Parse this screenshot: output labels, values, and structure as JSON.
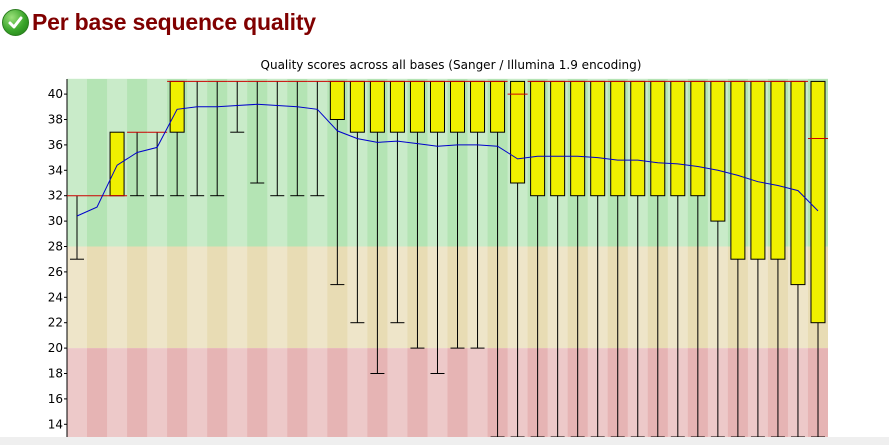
{
  "page": {
    "title": "Per base sequence quality",
    "status_icon": "check-circle-icon",
    "status": "pass"
  },
  "colors": {
    "title": "#800000",
    "good_zone": "#b4e4b4",
    "warn_zone": "#e8dcb4",
    "bad_zone": "#e6b4b4",
    "box_fill": "#f0f000",
    "median": "#cc0000",
    "mean_line": "#0000cc"
  },
  "chart_data": {
    "type": "box",
    "title": "Quality scores across all bases (Sanger / Illumina 1.9 encoding)",
    "xlabel": "",
    "ylabel": "",
    "ylim": [
      13,
      41.2
    ],
    "y_ticks": [
      14,
      16,
      18,
      20,
      22,
      24,
      26,
      28,
      30,
      32,
      34,
      36,
      38,
      40
    ],
    "zones": [
      {
        "name": "good",
        "from": 28,
        "to": 41.2
      },
      {
        "name": "warning",
        "from": 20,
        "to": 28
      },
      {
        "name": "bad",
        "from": 13,
        "to": 20
      }
    ],
    "positions": 38,
    "boxes": [
      {
        "lower_q": 32,
        "upper_q": 32,
        "median": 32,
        "whisker_low": 27,
        "whisker_high": 32,
        "mean": 30.4
      },
      {
        "lower_q": 32,
        "upper_q": 32,
        "median": 32,
        "whisker_low": 32,
        "whisker_high": 32,
        "mean": 31.1
      },
      {
        "lower_q": 32,
        "upper_q": 37,
        "median": 32,
        "whisker_low": 32,
        "whisker_high": 37,
        "mean": 34.4
      },
      {
        "lower_q": 37,
        "upper_q": 37,
        "median": 37,
        "whisker_low": 32,
        "whisker_high": 37,
        "mean": 35.4
      },
      {
        "lower_q": 37,
        "upper_q": 37,
        "median": 37,
        "whisker_low": 32,
        "whisker_high": 37,
        "mean": 35.8
      },
      {
        "lower_q": 37,
        "upper_q": 41,
        "median": 41,
        "whisker_low": 32,
        "whisker_high": 41,
        "mean": 38.8
      },
      {
        "lower_q": 41,
        "upper_q": 41,
        "median": 41,
        "whisker_low": 32,
        "whisker_high": 41,
        "mean": 39.0
      },
      {
        "lower_q": 41,
        "upper_q": 41,
        "median": 41,
        "whisker_low": 32,
        "whisker_high": 41,
        "mean": 39.0
      },
      {
        "lower_q": 41,
        "upper_q": 41,
        "median": 41,
        "whisker_low": 37,
        "whisker_high": 41,
        "mean": 39.1
      },
      {
        "lower_q": 41,
        "upper_q": 41,
        "median": 41,
        "whisker_low": 33,
        "whisker_high": 41,
        "mean": 39.2
      },
      {
        "lower_q": 41,
        "upper_q": 41,
        "median": 41,
        "whisker_low": 32,
        "whisker_high": 41,
        "mean": 39.1
      },
      {
        "lower_q": 41,
        "upper_q": 41,
        "median": 41,
        "whisker_low": 32,
        "whisker_high": 41,
        "mean": 39.0
      },
      {
        "lower_q": 41,
        "upper_q": 41,
        "median": 41,
        "whisker_low": 32,
        "whisker_high": 41,
        "mean": 38.8
      },
      {
        "lower_q": 38,
        "upper_q": 41,
        "median": 41,
        "whisker_low": 25,
        "whisker_high": 41,
        "mean": 37.1
      },
      {
        "lower_q": 37,
        "upper_q": 41,
        "median": 41,
        "whisker_low": 22,
        "whisker_high": 41,
        "mean": 36.5
      },
      {
        "lower_q": 37,
        "upper_q": 41,
        "median": 41,
        "whisker_low": 18,
        "whisker_high": 41,
        "mean": 36.2
      },
      {
        "lower_q": 37,
        "upper_q": 41,
        "median": 41,
        "whisker_low": 22,
        "whisker_high": 41,
        "mean": 36.3
      },
      {
        "lower_q": 37,
        "upper_q": 41,
        "median": 41,
        "whisker_low": 20,
        "whisker_high": 41,
        "mean": 36.1
      },
      {
        "lower_q": 37,
        "upper_q": 41,
        "median": 41,
        "whisker_low": 18,
        "whisker_high": 41,
        "mean": 35.9
      },
      {
        "lower_q": 37,
        "upper_q": 41,
        "median": 41,
        "whisker_low": 20,
        "whisker_high": 41,
        "mean": 36.0
      },
      {
        "lower_q": 37,
        "upper_q": 41,
        "median": 41,
        "whisker_low": 20,
        "whisker_high": 41,
        "mean": 36.0
      },
      {
        "lower_q": 37,
        "upper_q": 41,
        "median": 41,
        "whisker_low": 13,
        "whisker_high": 41,
        "mean": 35.9
      },
      {
        "lower_q": 33,
        "upper_q": 41,
        "median": 40,
        "whisker_low": 13,
        "whisker_high": 41,
        "mean": 34.9
      },
      {
        "lower_q": 32,
        "upper_q": 41,
        "median": 41,
        "whisker_low": 13,
        "whisker_high": 41,
        "mean": 35.1
      },
      {
        "lower_q": 32,
        "upper_q": 41,
        "median": 41,
        "whisker_low": 13,
        "whisker_high": 41,
        "mean": 35.1
      },
      {
        "lower_q": 32,
        "upper_q": 41,
        "median": 41,
        "whisker_low": 13,
        "whisker_high": 41,
        "mean": 35.1
      },
      {
        "lower_q": 32,
        "upper_q": 41,
        "median": 41,
        "whisker_low": 13,
        "whisker_high": 41,
        "mean": 35.0
      },
      {
        "lower_q": 32,
        "upper_q": 41,
        "median": 41,
        "whisker_low": 13,
        "whisker_high": 41,
        "mean": 34.8
      },
      {
        "lower_q": 32,
        "upper_q": 41,
        "median": 41,
        "whisker_low": 13,
        "whisker_high": 41,
        "mean": 34.8
      },
      {
        "lower_q": 32,
        "upper_q": 41,
        "median": 41,
        "whisker_low": 13,
        "whisker_high": 41,
        "mean": 34.6
      },
      {
        "lower_q": 32,
        "upper_q": 41,
        "median": 41,
        "whisker_low": 13,
        "whisker_high": 41,
        "mean": 34.5
      },
      {
        "lower_q": 32,
        "upper_q": 41,
        "median": 41,
        "whisker_low": 13,
        "whisker_high": 41,
        "mean": 34.3
      },
      {
        "lower_q": 30,
        "upper_q": 41,
        "median": 41,
        "whisker_low": 13,
        "whisker_high": 41,
        "mean": 34.0
      },
      {
        "lower_q": 27,
        "upper_q": 41,
        "median": 41,
        "whisker_low": 13,
        "whisker_high": 41,
        "mean": 33.6
      },
      {
        "lower_q": 27,
        "upper_q": 41,
        "median": 41,
        "whisker_low": 13,
        "whisker_high": 41,
        "mean": 33.1
      },
      {
        "lower_q": 27,
        "upper_q": 41,
        "median": 41,
        "whisker_low": 13,
        "whisker_high": 41,
        "mean": 32.8
      },
      {
        "lower_q": 25,
        "upper_q": 41,
        "median": 41,
        "whisker_low": 13,
        "whisker_high": 41,
        "mean": 32.4
      },
      {
        "lower_q": 22,
        "upper_q": 41,
        "median": 36.5,
        "whisker_low": 13,
        "whisker_high": 41,
        "mean": 30.8
      }
    ]
  }
}
